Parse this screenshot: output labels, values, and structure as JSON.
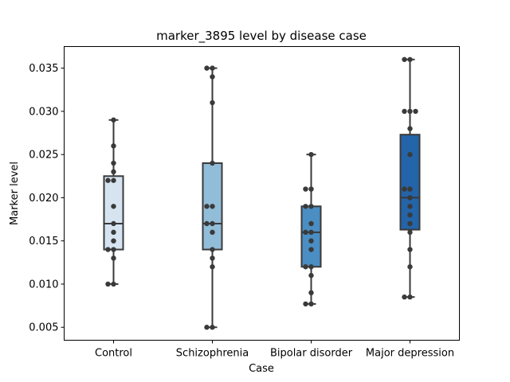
{
  "chart_data": {
    "type": "box",
    "title": "marker_3895 level by disease case",
    "xlabel": "Case",
    "ylabel": "Marker level",
    "ylim": [
      0.0035,
      0.0375
    ],
    "yticks": [
      0.005,
      0.01,
      0.015,
      0.02,
      0.025,
      0.03,
      0.035
    ],
    "ytick_labels": [
      "0.005",
      "0.010",
      "0.015",
      "0.020",
      "0.025",
      "0.030",
      "0.035"
    ],
    "categories": [
      "Control",
      "Schizophrenia",
      "Bipolar disorder",
      "Major depression"
    ],
    "colors": [
      "#d6e4f1",
      "#92bdd9",
      "#4a8ec3",
      "#2464a8"
    ],
    "grid": false,
    "boxes": [
      {
        "q1": 0.014,
        "median": 0.017,
        "q3": 0.0225,
        "whislo": 0.01,
        "whishi": 0.029
      },
      {
        "q1": 0.014,
        "median": 0.017,
        "q3": 0.024,
        "whislo": 0.005,
        "whishi": 0.035
      },
      {
        "q1": 0.012,
        "median": 0.016,
        "q3": 0.019,
        "whislo": 0.0077,
        "whishi": 0.025
      },
      {
        "q1": 0.0163,
        "median": 0.02,
        "q3": 0.0273,
        "whislo": 0.0085,
        "whishi": 0.036
      }
    ],
    "points": [
      [
        0.029,
        0.026,
        0.024,
        0.023,
        0.022,
        0.022,
        0.019,
        0.017,
        0.016,
        0.015,
        0.014,
        0.014,
        0.013,
        0.01,
        0.01
      ],
      [
        0.035,
        0.035,
        0.034,
        0.031,
        0.024,
        0.019,
        0.019,
        0.017,
        0.017,
        0.016,
        0.014,
        0.013,
        0.012,
        0.005,
        0.005
      ],
      [
        0.025,
        0.021,
        0.021,
        0.019,
        0.019,
        0.017,
        0.016,
        0.016,
        0.015,
        0.014,
        0.012,
        0.012,
        0.011,
        0.009,
        0.0077,
        0.0077
      ],
      [
        0.036,
        0.036,
        0.03,
        0.03,
        0.03,
        0.028,
        0.025,
        0.021,
        0.021,
        0.02,
        0.019,
        0.018,
        0.017,
        0.016,
        0.014,
        0.012,
        0.0085,
        0.0085
      ]
    ]
  }
}
